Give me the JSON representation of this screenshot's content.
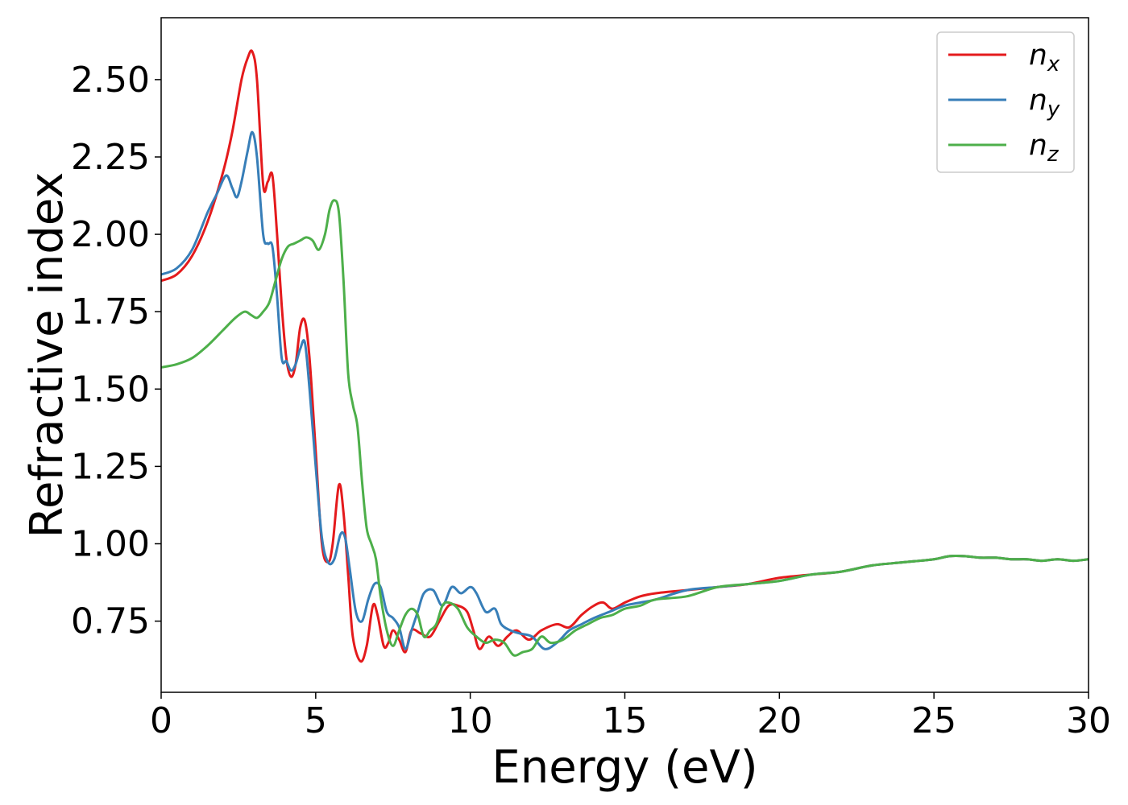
{
  "chart_data": {
    "type": "line",
    "title": "",
    "xlabel": "Energy (eV)",
    "ylabel": "Refractive index",
    "xlim": [
      0,
      30
    ],
    "ylim": [
      0.52,
      2.7
    ],
    "xticks": [
      0,
      5,
      10,
      15,
      20,
      25,
      30
    ],
    "xtick_labels": [
      "0",
      "5",
      "10",
      "15",
      "20",
      "25",
      "30"
    ],
    "yticks": [
      0.75,
      1.0,
      1.25,
      1.5,
      1.75,
      2.0,
      2.25,
      2.5
    ],
    "ytick_labels": [
      "0.75",
      "1.00",
      "1.25",
      "1.50",
      "1.75",
      "2.00",
      "2.25",
      "2.50"
    ],
    "grid": false,
    "legend_position": "top-right",
    "series": [
      {
        "name": "n",
        "subscript": "x",
        "color": "#e41a1c",
        "x": [
          0,
          0.5,
          1.0,
          1.5,
          2.0,
          2.3,
          2.6,
          2.8,
          2.95,
          3.1,
          3.3,
          3.45,
          3.6,
          3.75,
          3.9,
          4.05,
          4.2,
          4.35,
          4.5,
          4.65,
          4.8,
          5.0,
          5.2,
          5.4,
          5.55,
          5.75,
          5.9,
          6.05,
          6.2,
          6.45,
          6.65,
          6.85,
          7.0,
          7.2,
          7.35,
          7.5,
          7.7,
          7.9,
          8.1,
          8.4,
          8.7,
          9.0,
          9.3,
          9.6,
          9.9,
          10.1,
          10.3,
          10.6,
          10.9,
          11.2,
          11.5,
          11.9,
          12.3,
          12.8,
          13.2,
          13.6,
          14.0,
          14.3,
          14.6,
          15.0,
          15.5,
          16.0,
          17.0,
          18.0,
          19.0,
          20.0,
          21.0,
          22.0,
          23.0,
          24.0,
          25.0,
          25.5,
          26.0,
          26.5,
          27.0,
          27.5,
          28.0,
          28.5,
          29.0,
          29.5,
          30.0
        ],
        "values": [
          1.85,
          1.87,
          1.93,
          2.04,
          2.2,
          2.33,
          2.5,
          2.57,
          2.59,
          2.5,
          2.16,
          2.17,
          2.19,
          2.0,
          1.77,
          1.6,
          1.54,
          1.58,
          1.7,
          1.72,
          1.6,
          1.3,
          1.0,
          0.94,
          1.0,
          1.19,
          1.1,
          0.9,
          0.7,
          0.62,
          0.67,
          0.8,
          0.77,
          0.67,
          0.68,
          0.72,
          0.69,
          0.65,
          0.72,
          0.71,
          0.7,
          0.75,
          0.8,
          0.8,
          0.78,
          0.72,
          0.66,
          0.7,
          0.67,
          0.7,
          0.72,
          0.69,
          0.72,
          0.74,
          0.73,
          0.77,
          0.8,
          0.81,
          0.79,
          0.81,
          0.83,
          0.84,
          0.85,
          0.86,
          0.87,
          0.89,
          0.9,
          0.91,
          0.93,
          0.94,
          0.95,
          0.96,
          0.96,
          0.955,
          0.955,
          0.95,
          0.95,
          0.945,
          0.95,
          0.945,
          0.95
        ]
      },
      {
        "name": "n",
        "subscript": "y",
        "color": "#377eb8",
        "x": [
          0,
          0.5,
          1.0,
          1.5,
          1.8,
          2.1,
          2.3,
          2.45,
          2.6,
          2.8,
          2.95,
          3.1,
          3.3,
          3.45,
          3.6,
          3.75,
          3.9,
          4.05,
          4.2,
          4.35,
          4.5,
          4.65,
          4.8,
          5.0,
          5.2,
          5.4,
          5.6,
          5.8,
          5.95,
          6.1,
          6.3,
          6.5,
          6.7,
          6.9,
          7.1,
          7.3,
          7.5,
          7.7,
          7.9,
          8.1,
          8.3,
          8.5,
          8.8,
          9.1,
          9.4,
          9.7,
          10.0,
          10.2,
          10.5,
          10.8,
          11.0,
          11.3,
          11.6,
          12.0,
          12.4,
          12.8,
          13.2,
          13.6,
          14.0,
          14.5,
          15.0,
          15.5,
          16.0,
          17.0,
          18.0,
          19.0,
          20.0,
          21.0,
          22.0,
          23.0,
          24.0,
          25.0,
          25.5,
          26.0,
          26.5,
          27.0,
          27.5,
          28.0,
          28.5,
          29.0,
          29.5,
          30.0
        ],
        "values": [
          1.87,
          1.89,
          1.95,
          2.07,
          2.13,
          2.19,
          2.15,
          2.12,
          2.17,
          2.27,
          2.33,
          2.25,
          2.0,
          1.97,
          1.96,
          1.8,
          1.6,
          1.59,
          1.56,
          1.58,
          1.63,
          1.65,
          1.5,
          1.25,
          1.02,
          0.94,
          0.95,
          1.03,
          1.02,
          0.92,
          0.78,
          0.75,
          0.82,
          0.87,
          0.86,
          0.78,
          0.76,
          0.73,
          0.66,
          0.72,
          0.78,
          0.84,
          0.85,
          0.8,
          0.86,
          0.84,
          0.86,
          0.84,
          0.78,
          0.79,
          0.74,
          0.72,
          0.71,
          0.7,
          0.66,
          0.68,
          0.72,
          0.74,
          0.76,
          0.78,
          0.8,
          0.81,
          0.82,
          0.85,
          0.86,
          0.87,
          0.88,
          0.9,
          0.91,
          0.93,
          0.94,
          0.95,
          0.96,
          0.96,
          0.955,
          0.955,
          0.95,
          0.95,
          0.945,
          0.95,
          0.945,
          0.95
        ]
      },
      {
        "name": "n",
        "subscript": "z",
        "color": "#4daf4a",
        "x": [
          0,
          0.5,
          1.0,
          1.5,
          2.0,
          2.4,
          2.7,
          2.9,
          3.1,
          3.3,
          3.5,
          3.7,
          3.9,
          4.1,
          4.3,
          4.5,
          4.7,
          4.9,
          5.1,
          5.3,
          5.45,
          5.6,
          5.75,
          5.9,
          6.05,
          6.2,
          6.35,
          6.5,
          6.65,
          6.8,
          6.95,
          7.1,
          7.3,
          7.5,
          7.7,
          7.9,
          8.1,
          8.3,
          8.5,
          8.7,
          8.9,
          9.1,
          9.3,
          9.6,
          9.9,
          10.2,
          10.5,
          10.8,
          11.1,
          11.4,
          11.7,
          12.0,
          12.3,
          12.6,
          13.0,
          13.4,
          13.8,
          14.2,
          14.6,
          15.0,
          15.5,
          16.0,
          17.0,
          18.0,
          19.0,
          20.0,
          21.0,
          22.0,
          23.0,
          24.0,
          25.0,
          25.5,
          26.0,
          26.5,
          27.0,
          27.5,
          28.0,
          28.5,
          29.0,
          29.5,
          30.0
        ],
        "values": [
          1.57,
          1.58,
          1.6,
          1.64,
          1.69,
          1.73,
          1.75,
          1.74,
          1.73,
          1.75,
          1.78,
          1.85,
          1.92,
          1.96,
          1.97,
          1.98,
          1.99,
          1.98,
          1.95,
          2.0,
          2.08,
          2.11,
          2.07,
          1.85,
          1.55,
          1.45,
          1.38,
          1.2,
          1.05,
          1.0,
          0.95,
          0.83,
          0.72,
          0.67,
          0.72,
          0.77,
          0.79,
          0.77,
          0.7,
          0.72,
          0.74,
          0.8,
          0.81,
          0.79,
          0.73,
          0.7,
          0.68,
          0.69,
          0.68,
          0.64,
          0.65,
          0.66,
          0.7,
          0.68,
          0.69,
          0.72,
          0.74,
          0.76,
          0.77,
          0.79,
          0.8,
          0.82,
          0.83,
          0.86,
          0.87,
          0.88,
          0.9,
          0.91,
          0.93,
          0.94,
          0.95,
          0.96,
          0.96,
          0.955,
          0.955,
          0.95,
          0.95,
          0.945,
          0.95,
          0.945,
          0.95
        ]
      }
    ]
  }
}
